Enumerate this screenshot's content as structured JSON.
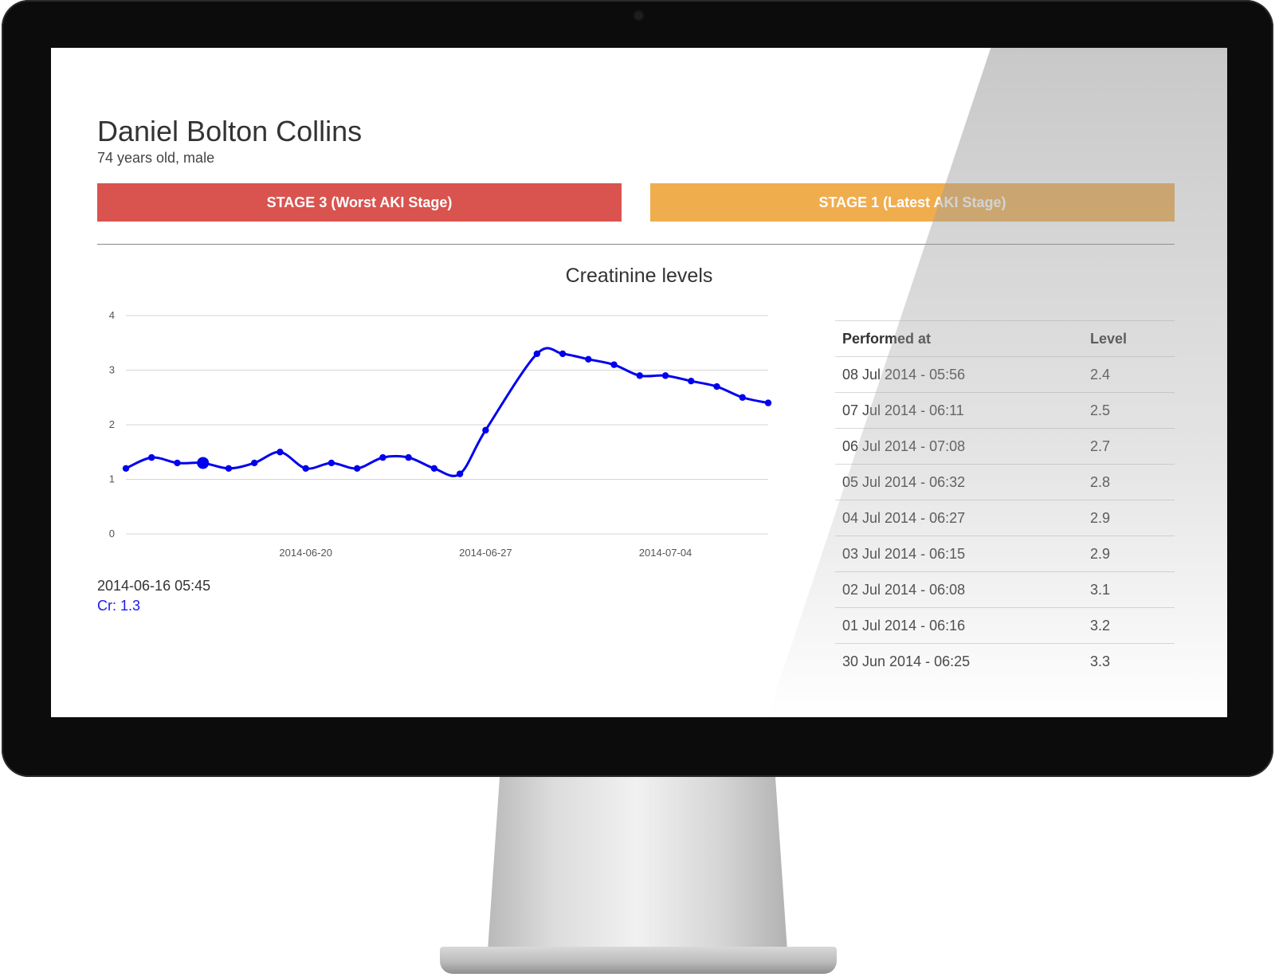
{
  "patient": {
    "name": "Daniel Bolton Collins",
    "info": "74 years old, male"
  },
  "stages": {
    "worst": {
      "label": "STAGE 3 (Worst AKI Stage)",
      "color": "#d9534f"
    },
    "latest": {
      "label": "STAGE 1 (Latest AKI Stage)",
      "color": "#f0ad4e"
    }
  },
  "chart": {
    "title": "Creatinine levels",
    "line_color": "#0000ee",
    "tooltip": {
      "date": "2014-06-16 05:45",
      "value": "Cr: 1.3"
    }
  },
  "chart_data": {
    "type": "line",
    "title": "Creatinine levels",
    "xlabel": "",
    "ylabel": "",
    "ylim": [
      0,
      4
    ],
    "yticks": [
      "0",
      "1",
      "2",
      "3",
      "4"
    ],
    "xticks": [
      {
        "label": "2014-06-20",
        "x": "2014-06-20"
      },
      {
        "label": "2014-06-27",
        "x": "2014-06-27"
      },
      {
        "label": "2014-07-04",
        "x": "2014-07-04"
      }
    ],
    "grid": true,
    "legend": "none",
    "highlighted_point_index": 3,
    "series": [
      {
        "points": [
          {
            "x": "2014-06-13",
            "y": 1.2
          },
          {
            "x": "2014-06-14",
            "y": 1.4
          },
          {
            "x": "2014-06-15",
            "y": 1.3
          },
          {
            "x": "2014-06-16",
            "y": 1.3
          },
          {
            "x": "2014-06-17",
            "y": 1.2
          },
          {
            "x": "2014-06-18",
            "y": 1.3
          },
          {
            "x": "2014-06-19",
            "y": 1.5
          },
          {
            "x": "2014-06-20",
            "y": 1.2
          },
          {
            "x": "2014-06-21",
            "y": 1.3
          },
          {
            "x": "2014-06-22",
            "y": 1.2
          },
          {
            "x": "2014-06-23",
            "y": 1.4
          },
          {
            "x": "2014-06-24",
            "y": 1.4
          },
          {
            "x": "2014-06-25",
            "y": 1.2
          },
          {
            "x": "2014-06-26",
            "y": 1.1
          },
          {
            "x": "2014-06-27",
            "y": 1.9
          },
          {
            "x": "2014-06-29",
            "y": 3.3
          },
          {
            "x": "2014-06-30",
            "y": 3.3
          },
          {
            "x": "2014-07-01",
            "y": 3.2
          },
          {
            "x": "2014-07-02",
            "y": 3.1
          },
          {
            "x": "2014-07-03",
            "y": 2.9
          },
          {
            "x": "2014-07-04",
            "y": 2.9
          },
          {
            "x": "2014-07-05",
            "y": 2.8
          },
          {
            "x": "2014-07-06",
            "y": 2.7
          },
          {
            "x": "2014-07-07",
            "y": 2.5
          },
          {
            "x": "2014-07-08",
            "y": 2.4
          }
        ]
      }
    ]
  },
  "table": {
    "headers": {
      "performed_at": "Performed at",
      "level": "Level"
    },
    "rows": [
      {
        "performed_at": "08 Jul 2014 - 05:56",
        "level": "2.4"
      },
      {
        "performed_at": "07 Jul 2014 - 06:11",
        "level": "2.5"
      },
      {
        "performed_at": "06 Jul 2014 - 07:08",
        "level": "2.7"
      },
      {
        "performed_at": "05 Jul 2014 - 06:32",
        "level": "2.8"
      },
      {
        "performed_at": "04 Jul 2014 - 06:27",
        "level": "2.9"
      },
      {
        "performed_at": "03 Jul 2014 - 06:15",
        "level": "2.9"
      },
      {
        "performed_at": "02 Jul 2014 - 06:08",
        "level": "3.1"
      },
      {
        "performed_at": "01 Jul 2014 - 06:16",
        "level": "3.2"
      },
      {
        "performed_at": "30 Jun 2014 - 06:25",
        "level": "3.3"
      }
    ]
  }
}
